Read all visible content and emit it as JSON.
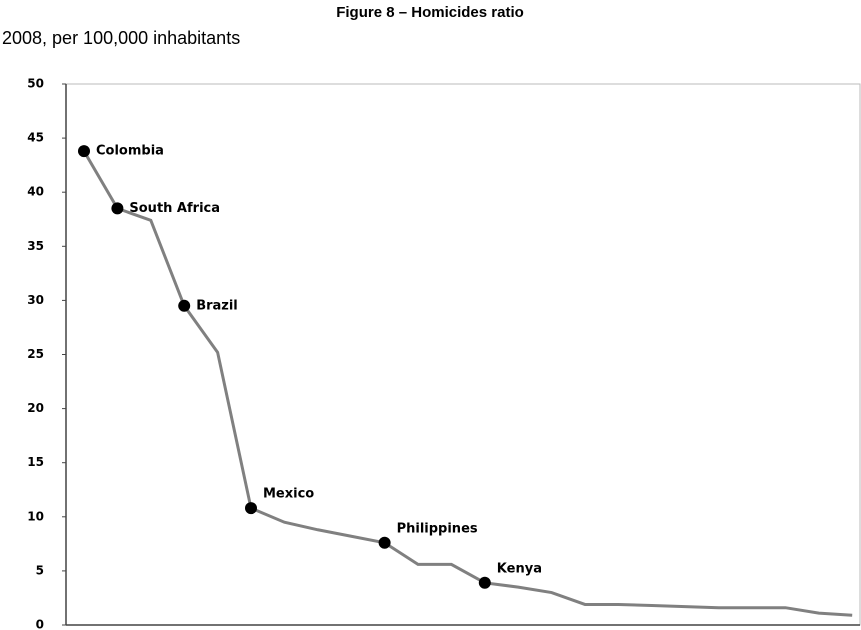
{
  "chart_data": {
    "type": "line",
    "title": "Figure 8 – Homicides ratio",
    "subtitle": "2008, per 100,000 inhabitants",
    "categories": [
      "Colombia",
      "South Africa",
      null,
      "Brazil",
      null,
      "Mexico",
      null,
      null,
      null,
      "Philippines",
      null,
      null,
      "Kenya",
      null,
      null,
      null,
      null,
      null,
      null,
      null,
      null,
      null,
      null,
      null
    ],
    "series": [
      {
        "color": "#808080",
        "values": [
          43.8,
          38.5,
          37.4,
          29.5,
          25.2,
          10.8,
          9.5,
          8.8,
          8.2,
          7.6,
          5.6,
          5.6,
          3.9,
          3.5,
          3.0,
          1.9,
          1.9,
          1.8,
          1.7,
          1.6,
          1.6,
          1.6,
          1.1,
          0.9
        ]
      }
    ],
    "ylim": [
      0,
      50
    ],
    "yticks": [
      0,
      5,
      10,
      15,
      20,
      25,
      30,
      35,
      40,
      45,
      50
    ]
  }
}
